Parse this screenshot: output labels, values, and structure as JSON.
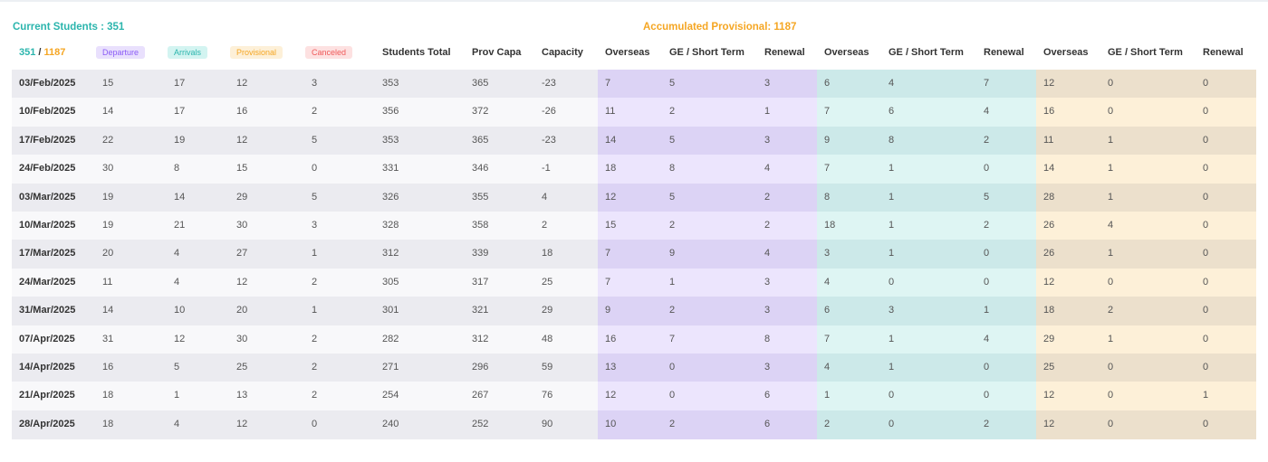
{
  "header": {
    "current_students": "Current Students : 351",
    "accumulated_provisional": "Accumulated Provisional: 1187"
  },
  "table": {
    "corner": {
      "left": "351",
      "separator": "/",
      "right": "1187"
    },
    "badges": [
      "Departure",
      "Arrivals",
      "Provisional",
      "Canceled"
    ],
    "columns": [
      "Students Total",
      "Prov Capa",
      "Capacity",
      "Overseas",
      "GE / Short Term",
      "Renewal",
      "Overseas",
      "GE / Short Term",
      "Renewal",
      "Overseas",
      "GE / Short Term",
      "Renewal"
    ],
    "rows": [
      [
        "03/Feb/2025",
        15,
        17,
        12,
        3,
        353,
        365,
        -23,
        7,
        5,
        3,
        6,
        4,
        7,
        12,
        0,
        0
      ],
      [
        "10/Feb/2025",
        14,
        17,
        16,
        2,
        356,
        372,
        -26,
        11,
        2,
        1,
        7,
        6,
        4,
        16,
        0,
        0
      ],
      [
        "17/Feb/2025",
        22,
        19,
        12,
        5,
        353,
        365,
        -23,
        14,
        5,
        3,
        9,
        8,
        2,
        11,
        1,
        0
      ],
      [
        "24/Feb/2025",
        30,
        8,
        15,
        0,
        331,
        346,
        -1,
        18,
        8,
        4,
        7,
        1,
        0,
        14,
        1,
        0
      ],
      [
        "03/Mar/2025",
        19,
        14,
        29,
        5,
        326,
        355,
        4,
        12,
        5,
        2,
        8,
        1,
        5,
        28,
        1,
        0
      ],
      [
        "10/Mar/2025",
        19,
        21,
        30,
        3,
        328,
        358,
        2,
        15,
        2,
        2,
        18,
        1,
        2,
        26,
        4,
        0
      ],
      [
        "17/Mar/2025",
        20,
        4,
        27,
        1,
        312,
        339,
        18,
        7,
        9,
        4,
        3,
        1,
        0,
        26,
        1,
        0
      ],
      [
        "24/Mar/2025",
        11,
        4,
        12,
        2,
        305,
        317,
        25,
        7,
        1,
        3,
        4,
        0,
        0,
        12,
        0,
        0
      ],
      [
        "31/Mar/2025",
        14,
        10,
        20,
        1,
        301,
        321,
        29,
        9,
        2,
        3,
        6,
        3,
        1,
        18,
        2,
        0
      ],
      [
        "07/Apr/2025",
        31,
        12,
        30,
        2,
        282,
        312,
        48,
        16,
        7,
        8,
        7,
        1,
        4,
        29,
        1,
        0
      ],
      [
        "14/Apr/2025",
        16,
        5,
        25,
        2,
        271,
        296,
        59,
        13,
        0,
        3,
        4,
        1,
        0,
        25,
        0,
        0
      ],
      [
        "21/Apr/2025",
        18,
        1,
        13,
        2,
        254,
        267,
        76,
        12,
        0,
        6,
        1,
        0,
        0,
        12,
        0,
        1
      ],
      [
        "28/Apr/2025",
        18,
        4,
        12,
        0,
        240,
        252,
        90,
        10,
        2,
        6,
        2,
        0,
        2,
        12,
        0,
        0
      ]
    ]
  }
}
